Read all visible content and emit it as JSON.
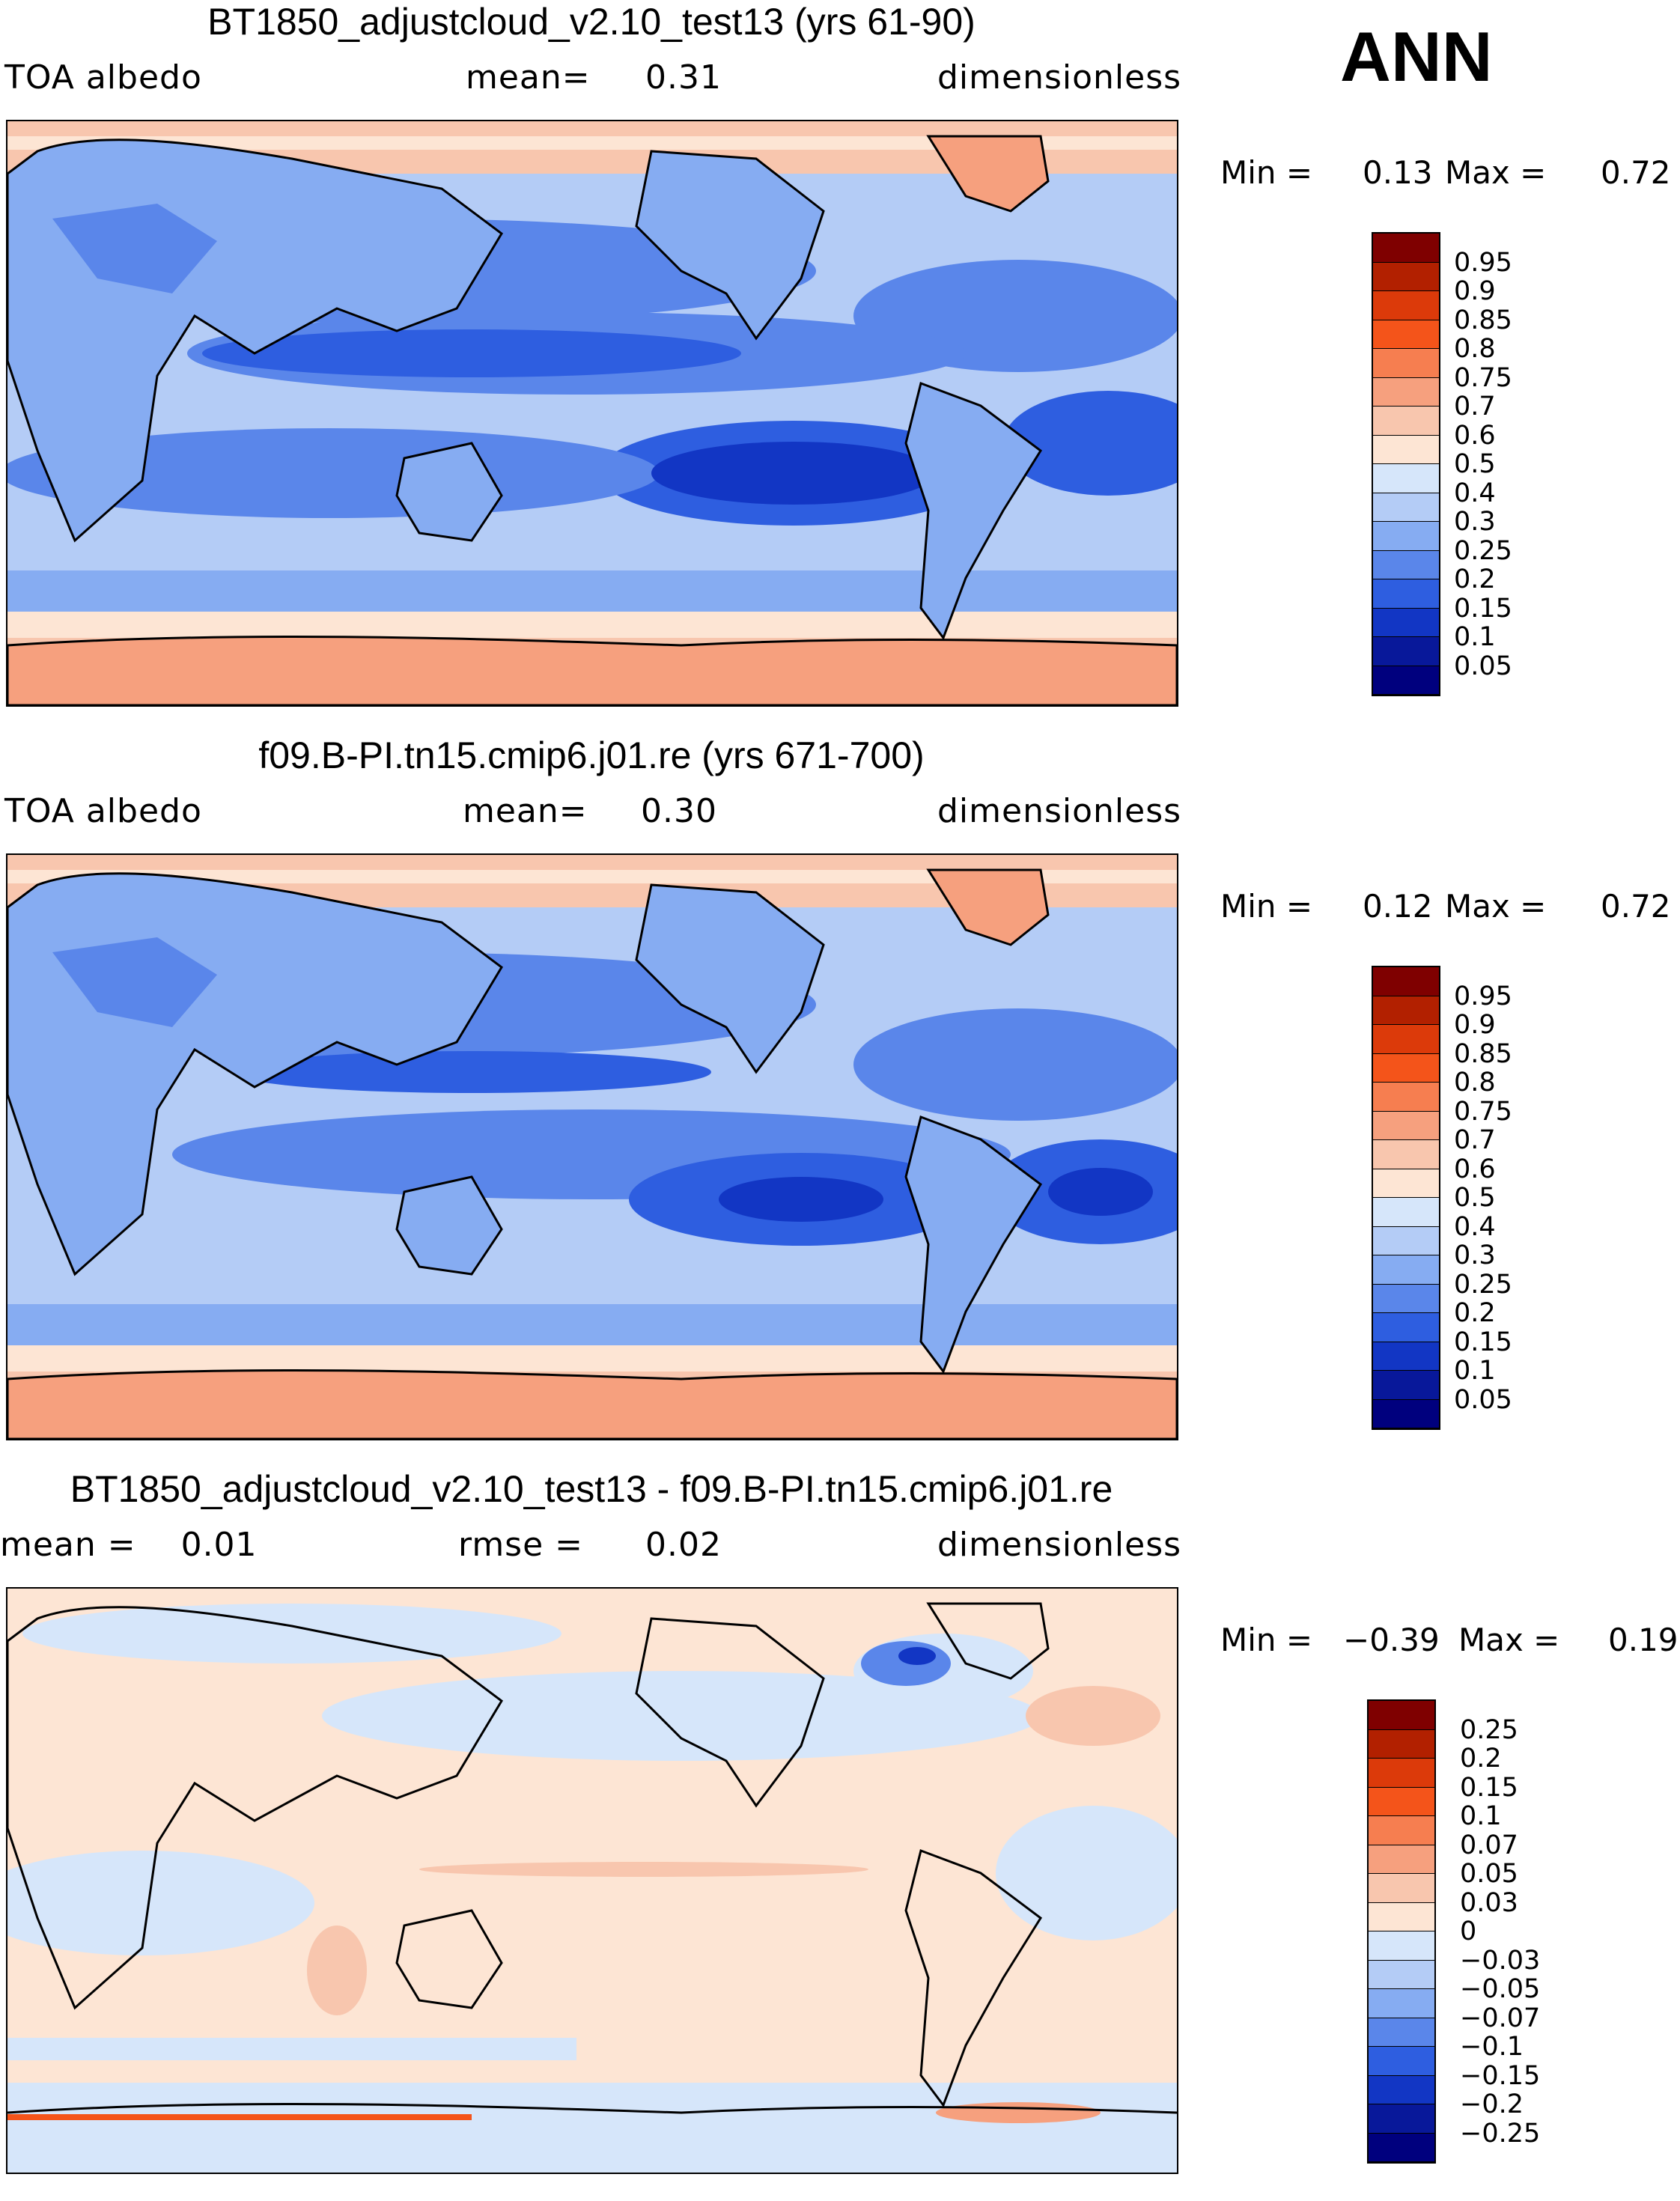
{
  "season": "ANN",
  "panels": [
    {
      "title": "BT1850_adjustcloud_v2.10_test13 (yrs 61-90)",
      "left": "TOA albedo",
      "mid_label": "mean=",
      "mid_value": "0.31",
      "right": "dimensionless",
      "min_label": "Min =",
      "min_value": "0.13",
      "max_label": "Max =",
      "max_value": "0.72",
      "colorbar": {
        "labels": [
          "0.95",
          "0.9",
          "0.85",
          "0.8",
          "0.75",
          "0.7",
          "0.6",
          "0.5",
          "0.4",
          "0.3",
          "0.25",
          "0.2",
          "0.15",
          "0.1",
          "0.05"
        ],
        "colors": [
          "#7f0000",
          "#b22000",
          "#dc3a0a",
          "#f4541a",
          "#f67e50",
          "#f6a07e",
          "#f8c6ae",
          "#fde5d4",
          "#d6e6fa",
          "#b4ccf6",
          "#86acf2",
          "#5a86ea",
          "#2e5ee0",
          "#1236c4",
          "#08189a",
          "#00007e"
        ]
      }
    },
    {
      "title": "f09.B-PI.tn15.cmip6.j01.re (yrs 671-700)",
      "left": "TOA albedo",
      "mid_label": "mean=",
      "mid_value": "0.30",
      "right": "dimensionless",
      "min_label": "Min =",
      "min_value": "0.12",
      "max_label": "Max =",
      "max_value": "0.72",
      "colorbar": {
        "labels": [
          "0.95",
          "0.9",
          "0.85",
          "0.8",
          "0.75",
          "0.7",
          "0.6",
          "0.5",
          "0.4",
          "0.3",
          "0.25",
          "0.2",
          "0.15",
          "0.1",
          "0.05"
        ],
        "colors": [
          "#7f0000",
          "#b22000",
          "#dc3a0a",
          "#f4541a",
          "#f67e50",
          "#f6a07e",
          "#f8c6ae",
          "#fde5d4",
          "#d6e6fa",
          "#b4ccf6",
          "#86acf2",
          "#5a86ea",
          "#2e5ee0",
          "#1236c4",
          "#08189a",
          "#00007e"
        ]
      }
    },
    {
      "title": "BT1850_adjustcloud_v2.10_test13 - f09.B-PI.tn15.cmip6.j01.re",
      "left": "mean =    0.01",
      "mid_label": "rmse =",
      "mid_value": "0.02",
      "right": "dimensionless",
      "min_label": "Min =",
      "min_value": "−0.39",
      "max_label": "Max =",
      "max_value": "0.19",
      "colorbar": {
        "labels": [
          "0.25",
          "0.2",
          "0.15",
          "0.1",
          "0.07",
          "0.05",
          "0.03",
          "0",
          "−0.03",
          "−0.05",
          "−0.07",
          "−0.1",
          "−0.15",
          "−0.2",
          "−0.25"
        ],
        "colors": [
          "#7f0000",
          "#b22000",
          "#dc3a0a",
          "#f4541a",
          "#f67e50",
          "#f6a07e",
          "#f8c6ae",
          "#fde5d4",
          "#d6e6fa",
          "#b4ccf6",
          "#86acf2",
          "#5a86ea",
          "#2e5ee0",
          "#1236c4",
          "#08189a",
          "#00007e"
        ]
      }
    }
  ]
}
